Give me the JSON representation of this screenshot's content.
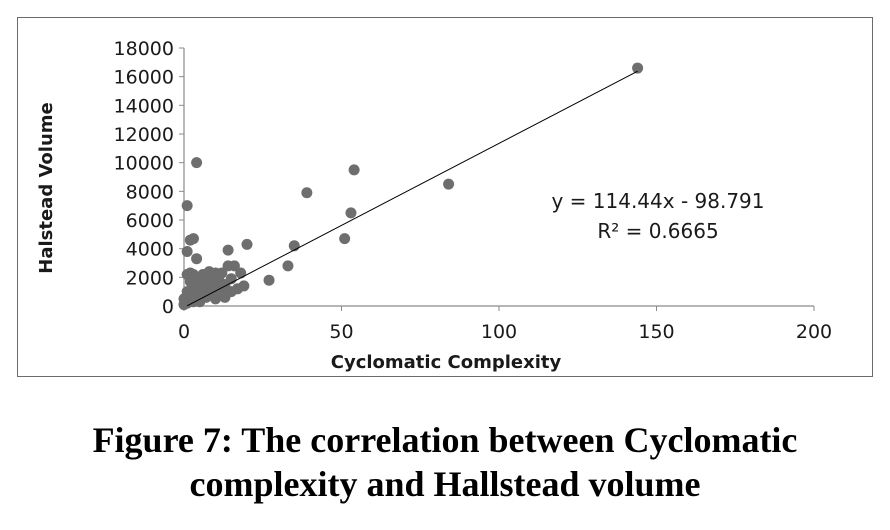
{
  "chart_data": {
    "type": "scatter",
    "xlabel": "Cyclomatic Complexity",
    "ylabel": "Halstead Volume",
    "xlim": [
      0,
      200
    ],
    "ylim": [
      0,
      18000
    ],
    "x_ticks": [
      "0",
      "50",
      "100",
      "150",
      "200"
    ],
    "y_ticks": [
      "0",
      "2000",
      "4000",
      "6000",
      "8000",
      "10000",
      "12000",
      "14000",
      "16000",
      "18000"
    ],
    "grid": false,
    "marker_color": "#6e6e6e",
    "series": [
      {
        "points": [
          [
            144,
            16600
          ],
          [
            84,
            8500
          ],
          [
            54,
            9500
          ],
          [
            53,
            6500
          ],
          [
            51,
            4700
          ],
          [
            39,
            7900
          ],
          [
            35,
            4200
          ],
          [
            33,
            2800
          ],
          [
            27,
            1800
          ],
          [
            20,
            4300
          ],
          [
            19,
            1400
          ],
          [
            18,
            2300
          ],
          [
            17,
            1200
          ],
          [
            16,
            2800
          ],
          [
            15,
            1000
          ],
          [
            14,
            3900
          ],
          [
            14,
            2800
          ],
          [
            13,
            1500
          ],
          [
            12,
            2300
          ],
          [
            11,
            800
          ],
          [
            10,
            2300
          ],
          [
            10,
            500
          ],
          [
            9,
            1800
          ],
          [
            8,
            2400
          ],
          [
            8,
            1200
          ],
          [
            7,
            600
          ],
          [
            6,
            2200
          ],
          [
            6,
            1500
          ],
          [
            5,
            900
          ],
          [
            4,
            10000
          ],
          [
            4,
            3300
          ],
          [
            4,
            2000
          ],
          [
            3,
            4700
          ],
          [
            3,
            1300
          ],
          [
            3,
            300
          ],
          [
            2,
            4600
          ],
          [
            2,
            1700
          ],
          [
            2,
            700
          ],
          [
            1,
            7000
          ],
          [
            1,
            3800
          ],
          [
            1,
            2200
          ],
          [
            1,
            1000
          ],
          [
            1,
            200
          ],
          [
            0,
            500
          ],
          [
            0,
            100
          ],
          [
            5,
            1800
          ],
          [
            6,
            600
          ],
          [
            7,
            1900
          ],
          [
            8,
            800
          ],
          [
            9,
            1300
          ],
          [
            11,
            1900
          ],
          [
            12,
            1000
          ],
          [
            13,
            600
          ],
          [
            2,
            2300
          ],
          [
            4,
            1100
          ],
          [
            3,
            2200
          ],
          [
            5,
            300
          ],
          [
            7,
            2200
          ],
          [
            10,
            1500
          ],
          [
            15,
            1900
          ]
        ]
      }
    ],
    "trendline": {
      "slope": 114.44,
      "intercept": -98.791,
      "x_range": [
        1,
        144
      ],
      "equation": "y = 114.44x - 98.791",
      "r_squared": "R² = 0.6665"
    }
  },
  "caption": {
    "line1": "Figure 7: The correlation between Cyclomatic",
    "line2": "complexity and Hallstead volume"
  }
}
